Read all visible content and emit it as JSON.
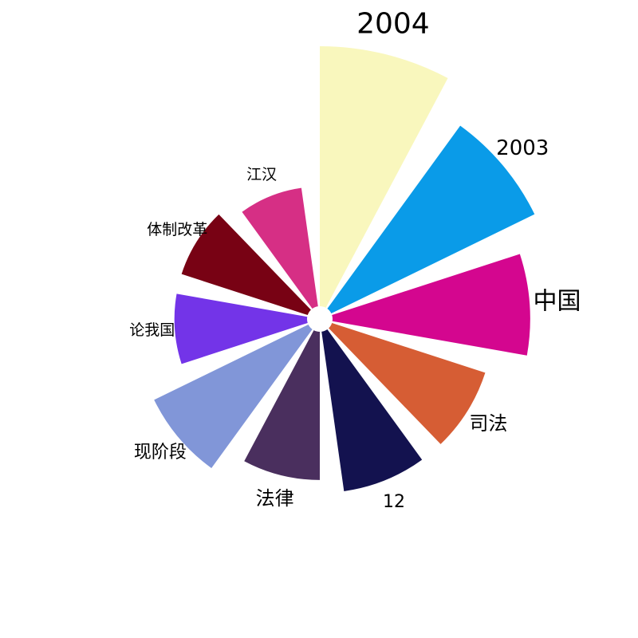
{
  "chart_data": {
    "type": "polar-bar",
    "title": "",
    "categories": [
      "2004",
      "2003",
      "中国",
      "司法",
      "12",
      "法律",
      "现阶段",
      "论我国",
      "体制改革",
      "江汉"
    ],
    "values": [
      100,
      87,
      76,
      62,
      62,
      57,
      66,
      51,
      51,
      46
    ],
    "colors": [
      "#f9f7bd",
      "#0a9be8",
      "#d4068f",
      "#d65d34",
      "#13124f",
      "#4a2f5e",
      "#8196d8",
      "#7334e8",
      "#780214",
      "#d62f85"
    ],
    "rmax": 100,
    "direction": "clockwise",
    "start": "top",
    "legend": "none"
  }
}
